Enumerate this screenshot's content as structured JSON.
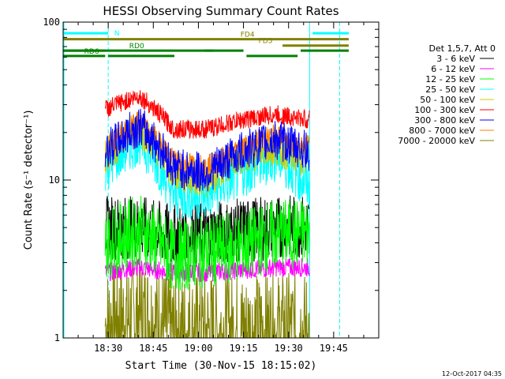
{
  "chart_data": {
    "type": "line",
    "title": "HESSI Observing Summary Count Rates",
    "xlabel": "Start Time (30-Nov-15 18:15:02)",
    "ylabel": "Count Rate (s⁻¹ detector⁻¹)",
    "y_scale": "log",
    "ylim": [
      1,
      100
    ],
    "xlim": [
      "18:15",
      "20:00"
    ],
    "x_ticks": [
      "18:30",
      "18:45",
      "19:00",
      "19:15",
      "19:30",
      "19:45"
    ],
    "y_ticks": [
      "1",
      "10",
      "100"
    ],
    "grid": false,
    "legend_placement": "right",
    "legend_title": "Det 1,5,7, Att 0",
    "data_start": "18:29",
    "data_end": "19:37",
    "series": [
      {
        "name": "3 - 6 keV",
        "color": "#000000",
        "base": [
          5.0,
          5.0,
          4.4,
          4.6,
          4.8,
          5.0,
          5.1
        ],
        "spread": 1.6
      },
      {
        "name": "6 - 12 keV",
        "color": "#ff00ff",
        "base": [
          2.6,
          2.8,
          2.6,
          2.6,
          2.7,
          2.8,
          2.8
        ],
        "spread": 1.15
      },
      {
        "name": "12 - 25 keV",
        "color": "#00ff00",
        "base": [
          4.0,
          4.8,
          3.3,
          3.5,
          3.8,
          4.5,
          4.6
        ],
        "spread": 1.7
      },
      {
        "name": "25 - 50 keV",
        "color": "#00ffff",
        "base": [
          12,
          18,
          8,
          8,
          11,
          14,
          9
        ],
        "spread": 1.45
      },
      {
        "name": "50 - 100 keV",
        "color": "#cccc00",
        "base": [
          14,
          21,
          11,
          10,
          14,
          16,
          13
        ],
        "spread": 1.3
      },
      {
        "name": "100 - 300 keV",
        "color": "#ff0000",
        "base": [
          28,
          34,
          21,
          21,
          24,
          26,
          24
        ],
        "spread": 1.15
      },
      {
        "name": "300 - 800 keV",
        "color": "#0000ff",
        "base": [
          15,
          22,
          12,
          11,
          15,
          18,
          15
        ],
        "spread": 1.35
      },
      {
        "name": "800 - 7000 keV",
        "color": "#ff8000",
        "base": [
          16,
          23,
          13,
          12,
          16,
          19,
          16
        ],
        "spread": 1.2
      },
      {
        "name": "7000 - 20000 keV",
        "color": "#808000",
        "base": [
          1.2,
          1.4,
          1.1,
          1.1,
          1.1,
          1.1,
          1.1
        ],
        "spread": 2.4
      }
    ],
    "state_bars": [
      {
        "label": "N",
        "color": "#00ffff",
        "segments": [
          [
            "18:15",
            "18:30"
          ],
          [
            "19:38",
            "19:50"
          ]
        ],
        "level": 85,
        "label_at": "18:32"
      },
      {
        "label": "FD4",
        "color": "#808000",
        "segments": [
          [
            "18:15",
            "19:50"
          ]
        ],
        "level": 78,
        "label_at": "19:14"
      },
      {
        "label": "FD5",
        "color": "#808000",
        "segments": [
          [
            "19:28",
            "19:50"
          ]
        ],
        "level": 71,
        "label_at": "19:20"
      },
      {
        "label": "RD0",
        "color": "#008000",
        "segments": [
          [
            "18:15",
            "19:05"
          ]
        ],
        "level": 66,
        "label_at": "18:37"
      },
      {
        "label": "RD6",
        "color": "#008000",
        "segments": [
          [
            "18:15",
            "18:29"
          ],
          [
            "18:30",
            "18:52"
          ],
          [
            "19:16",
            "19:33"
          ]
        ],
        "level": 61,
        "label_at": "18:22"
      }
    ],
    "green_line": {
      "color": "#008000",
      "segments": [
        [
          "18:15",
          "18:29"
        ],
        [
          "19:02",
          "19:15"
        ],
        [
          "19:34",
          "19:50"
        ]
      ],
      "level": 66
    },
    "vertical_markers": [
      {
        "time": "18:30",
        "color": "#00ffff",
        "style": "dashed"
      },
      {
        "time": "19:37",
        "color": "#00ffff",
        "style": "solid"
      },
      {
        "time": "19:47",
        "color": "#00ffff",
        "style": "dashed"
      }
    ]
  },
  "footer": {
    "timestamp": "12-Oct-2017 04:35"
  }
}
